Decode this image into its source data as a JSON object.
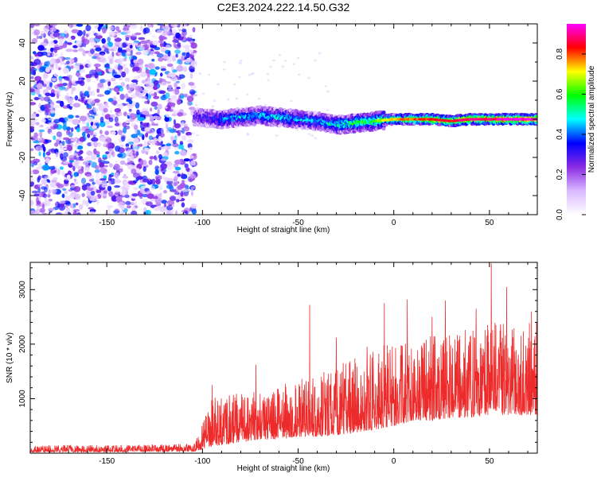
{
  "title": "C2E3.2024.222.14.50.G32",
  "chart_data": [
    {
      "type": "heatmap",
      "xlabel": "Height of straight line (km)",
      "ylabel": "Frequency (Hz)",
      "xlim": [
        -190,
        75
      ],
      "ylim": [
        -50,
        50
      ],
      "x_ticks": [
        -150,
        -100,
        -50,
        0,
        50
      ],
      "y_ticks": [
        -40,
        -20,
        0,
        20,
        40
      ],
      "colorbar": {
        "label": "Normalized spectral amplitude",
        "range": [
          0,
          0.95
        ],
        "ticks": [
          0.0,
          0.2,
          0.4,
          0.6,
          0.8
        ],
        "colors": [
          "#ffffff",
          "#d9b8ff",
          "#8a2be2",
          "#0000ff",
          "#00ffff",
          "#00ff00",
          "#ffff00",
          "#ff0000",
          "#ff00ff"
        ]
      },
      "noise_region_x": [
        -190,
        -104
      ],
      "ridge": {
        "x": [
          -104,
          -90,
          -80,
          -70,
          -60,
          -50,
          -40,
          -30,
          -20,
          -10,
          0,
          10,
          20,
          30,
          40,
          50,
          60,
          75
        ],
        "freq": [
          1,
          0,
          1,
          2,
          1,
          0,
          -1,
          -3,
          -2,
          -1,
          0,
          0,
          0,
          -1,
          0,
          0,
          0,
          0
        ],
        "amplitude": [
          0.3,
          0.4,
          0.45,
          0.45,
          0.45,
          0.45,
          0.4,
          0.5,
          0.55,
          0.6,
          0.7,
          0.75,
          0.8,
          0.8,
          0.85,
          0.85,
          0.9,
          0.9
        ]
      }
    },
    {
      "type": "line",
      "xlabel": "Height of straight line (km)",
      "ylabel": "SNR (10 * v/v)",
      "xlim": [
        -190,
        75
      ],
      "ylim": [
        0,
        3500
      ],
      "x_ticks": [
        -150,
        -100,
        -50,
        0,
        50
      ],
      "y_ticks": [
        1000,
        2000,
        3000
      ],
      "color": "#ee2b2b",
      "envelope": {
        "x": [
          -190,
          -150,
          -104,
          -95,
          -90,
          -80,
          -70,
          -60,
          -50,
          -40,
          -30,
          -20,
          -10,
          0,
          10,
          20,
          30,
          40,
          50,
          60,
          75
        ],
        "base": [
          20,
          20,
          30,
          120,
          150,
          200,
          250,
          250,
          300,
          300,
          330,
          380,
          430,
          500,
          600,
          600,
          650,
          650,
          700,
          700,
          700
        ],
        "peak": [
          150,
          150,
          180,
          1000,
          1050,
          1100,
          1150,
          1250,
          1350,
          1400,
          1650,
          1800,
          1950,
          2050,
          2100,
          2150,
          2200,
          2300,
          2400,
          2400,
          2400
        ]
      },
      "highlights": [
        {
          "x": -95,
          "y": 1250
        },
        {
          "x": -72,
          "y": 1620
        },
        {
          "x": -44,
          "y": 2720
        },
        {
          "x": -30,
          "y": 2120
        },
        {
          "x": -14,
          "y": 1950
        },
        {
          "x": -5,
          "y": 2750
        },
        {
          "x": 7,
          "y": 2820
        },
        {
          "x": 20,
          "y": 2500
        },
        {
          "x": 27,
          "y": 2800
        },
        {
          "x": 43,
          "y": 2650
        },
        {
          "x": 51,
          "y": 3480
        },
        {
          "x": 59,
          "y": 3050
        },
        {
          "x": 72,
          "y": 2600
        }
      ]
    }
  ]
}
